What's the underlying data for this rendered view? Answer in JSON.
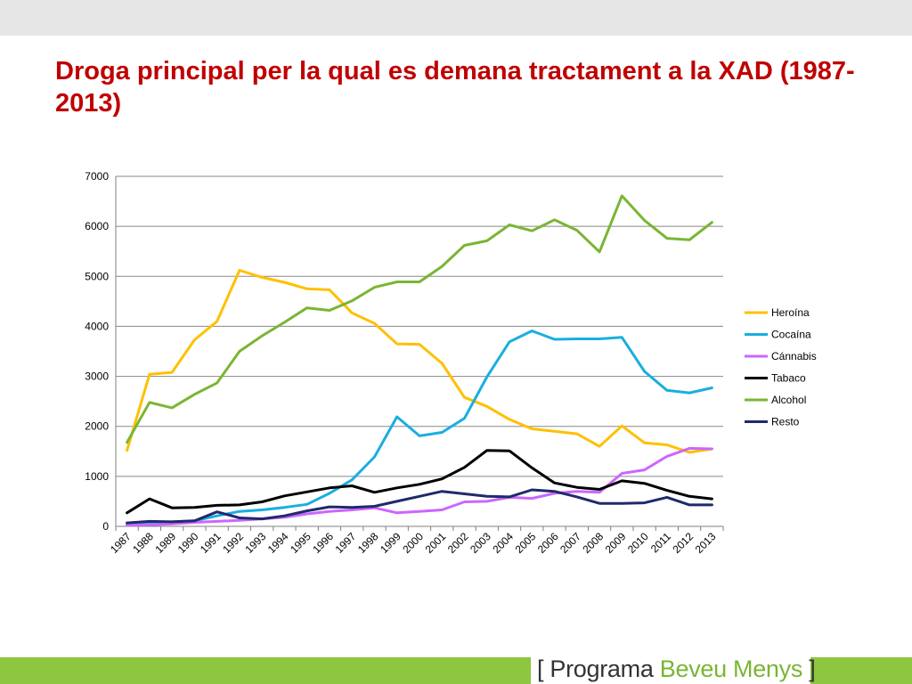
{
  "slide": {
    "title": "Droga principal per la qual es demana tractament a la XAD  (1987-2013)"
  },
  "brand": {
    "open_bracket": "[",
    "word1": "Programa",
    "word2": "Beveu Menys",
    "close_bracket": "]"
  },
  "colors": {
    "title": "#c00000",
    "brand_green": "#8dc63f",
    "top_bar": "#e6e6e6"
  },
  "chart_data": {
    "type": "line",
    "title": "",
    "xlabel": "",
    "ylabel": "",
    "ylim": [
      0,
      7000
    ],
    "yticks": [
      0,
      1000,
      2000,
      3000,
      4000,
      5000,
      6000,
      7000
    ],
    "grid": true,
    "legend_position": "right",
    "categories": [
      "1987",
      "1988",
      "1989",
      "1990",
      "1991",
      "1992",
      "1993",
      "1994",
      "1995",
      "1996",
      "1997",
      "1998",
      "1999",
      "2000",
      "2001",
      "2002",
      "2003",
      "2004",
      "2005",
      "2006",
      "2007",
      "2008",
      "2009",
      "2010",
      "2011",
      "2012",
      "2013"
    ],
    "series": [
      {
        "name": "Heroína",
        "color": "#ffc000",
        "values": [
          1520,
          3040,
          3080,
          3730,
          4100,
          5120,
          4980,
          4880,
          4750,
          4730,
          4270,
          4060,
          3650,
          3640,
          3260,
          2580,
          2400,
          2140,
          1950,
          1900,
          1850,
          1600,
          2010,
          1670,
          1630,
          1480,
          1550
        ]
      },
      {
        "name": "Cocaína",
        "color": "#1aaee0",
        "values": [
          40,
          80,
          90,
          110,
          210,
          300,
          330,
          380,
          440,
          660,
          930,
          1390,
          2190,
          1810,
          1880,
          2160,
          2990,
          3690,
          3910,
          3740,
          3750,
          3750,
          3780,
          3100,
          2720,
          2670,
          2770
        ]
      },
      {
        "name": "Cánnabis",
        "color": "#cc66ff",
        "values": [
          20,
          30,
          50,
          80,
          100,
          120,
          150,
          180,
          250,
          300,
          330,
          370,
          270,
          300,
          330,
          490,
          500,
          580,
          560,
          660,
          700,
          680,
          1060,
          1130,
          1400,
          1560,
          1550
        ]
      },
      {
        "name": "Tabaco",
        "color": "#000000",
        "values": [
          270,
          550,
          370,
          380,
          420,
          430,
          490,
          610,
          690,
          770,
          810,
          680,
          770,
          840,
          950,
          1180,
          1520,
          1510,
          1170,
          870,
          780,
          740,
          910,
          860,
          720,
          600,
          550
        ]
      },
      {
        "name": "Alcohol",
        "color": "#7ab534",
        "values": [
          1680,
          2480,
          2370,
          2640,
          2870,
          3500,
          3810,
          4080,
          4370,
          4320,
          4510,
          4780,
          4890,
          4890,
          5200,
          5620,
          5710,
          6030,
          5910,
          6130,
          5920,
          5490,
          6610,
          6120,
          5760,
          5730,
          6080
        ]
      },
      {
        "name": "Resto",
        "color": "#1f2a6b",
        "values": [
          70,
          100,
          90,
          110,
          290,
          170,
          150,
          210,
          310,
          390,
          380,
          400,
          500,
          600,
          700,
          650,
          600,
          590,
          730,
          700,
          590,
          460,
          460,
          470,
          580,
          430,
          430
        ]
      }
    ]
  }
}
